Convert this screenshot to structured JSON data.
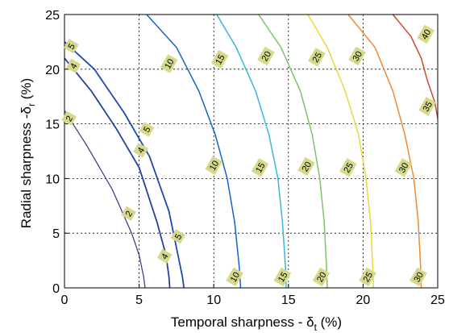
{
  "chart_data": {
    "type": "line",
    "title": "",
    "xlabel": {
      "main": "Temporal sharpness - δ",
      "sub": "t",
      "suffix": " (%)"
    },
    "ylabel": {
      "main": "Radial sharpness -δ",
      "sub": "r",
      "suffix": " (%)"
    },
    "xlim": [
      0,
      25
    ],
    "ylim": [
      0,
      25
    ],
    "xticks": [
      "0",
      "5",
      "10",
      "15",
      "20",
      "25"
    ],
    "yticks": [
      "0",
      "5",
      "10",
      "15",
      "20",
      "25"
    ],
    "grid": true,
    "series": [
      {
        "label": "2",
        "color": "#3a2f8a",
        "width": 1.2,
        "x": [
          0,
          1.5,
          3.2,
          4.5,
          5.0,
          5.3,
          5.4
        ],
        "y": [
          16.2,
          13,
          9,
          5,
          3,
          1,
          0
        ],
        "labels": [
          {
            "text": "2",
            "x": 0.3,
            "y": 15.5
          },
          {
            "text": "2",
            "x": 4.3,
            "y": 6.8
          }
        ]
      },
      {
        "label": "4",
        "color": "#243fa0",
        "width": 1.8,
        "x": [
          0,
          1.8,
          3.5,
          5.0,
          6.2,
          6.8,
          7.0,
          7.05
        ],
        "y": [
          21.0,
          18,
          14.5,
          11,
          6,
          3,
          1,
          0
        ],
        "labels": [
          {
            "text": "4",
            "x": 0.6,
            "y": 20.3
          },
          {
            "text": "4",
            "x": 5.1,
            "y": 12.6
          },
          {
            "text": "4",
            "x": 6.7,
            "y": 2.9
          }
        ]
      },
      {
        "label": "5",
        "color": "#1f48b5",
        "width": 1.8,
        "x": [
          0,
          2.0,
          4.0,
          5.7,
          7.0,
          7.6,
          7.9,
          8.0
        ],
        "y": [
          22.5,
          20,
          16,
          12,
          7,
          3,
          1,
          0
        ],
        "labels": [
          {
            "text": "5",
            "x": 0.45,
            "y": 22.1
          },
          {
            "text": "5",
            "x": 5.5,
            "y": 14.5
          },
          {
            "text": "5",
            "x": 7.6,
            "y": 4.7
          }
        ]
      },
      {
        "label": "10",
        "color": "#1862c2",
        "width": 1.5,
        "x": [
          5.5,
          7.5,
          9.0,
          10.1,
          10.9,
          11.4,
          11.7,
          11.8
        ],
        "y": [
          25,
          22,
          18,
          14,
          10,
          6,
          2,
          0
        ],
        "labels": [
          {
            "text": "10",
            "x": 7.0,
            "y": 20.5
          },
          {
            "text": "10",
            "x": 10.0,
            "y": 11.2
          },
          {
            "text": "10",
            "x": 11.4,
            "y": 1.0
          }
        ]
      },
      {
        "label": "15",
        "color": "#3ab6dd",
        "width": 1.5,
        "x": [
          10.2,
          11.5,
          12.8,
          13.7,
          14.3,
          14.6,
          14.8,
          14.85
        ],
        "y": [
          25,
          22,
          18,
          14,
          10,
          6,
          2,
          0
        ],
        "labels": [
          {
            "text": "15",
            "x": 10.4,
            "y": 20.9
          },
          {
            "text": "15",
            "x": 13.1,
            "y": 11.0
          },
          {
            "text": "15",
            "x": 14.6,
            "y": 1.0
          }
        ]
      },
      {
        "label": "20",
        "color": "#7cc36a",
        "width": 1.5,
        "x": [
          13.0,
          14.5,
          15.8,
          16.6,
          17.1,
          17.4,
          17.55,
          17.6
        ],
        "y": [
          25,
          22,
          18,
          14,
          10,
          6,
          2,
          0
        ],
        "labels": [
          {
            "text": "20",
            "x": 13.5,
            "y": 21.2
          },
          {
            "text": "20",
            "x": 16.2,
            "y": 11.1
          },
          {
            "text": "20",
            "x": 17.2,
            "y": 1.0
          }
        ]
      },
      {
        "label": "25",
        "color": "#e8d93a",
        "width": 1.5,
        "x": [
          16.3,
          17.6,
          18.8,
          19.7,
          20.2,
          20.5,
          20.65,
          20.7
        ],
        "y": [
          25,
          22,
          18,
          14,
          10,
          6,
          2,
          0
        ],
        "labels": [
          {
            "text": "25",
            "x": 16.9,
            "y": 21.1
          },
          {
            "text": "25",
            "x": 19.0,
            "y": 11.0
          },
          {
            "text": "25",
            "x": 20.3,
            "y": 1.0
          }
        ]
      },
      {
        "label": "30",
        "color": "#f08a32",
        "width": 1.5,
        "x": [
          19.0,
          20.8,
          22.0,
          22.8,
          23.4,
          23.7,
          23.85,
          23.9
        ],
        "y": [
          25,
          22,
          18,
          14,
          10,
          6,
          2,
          0
        ],
        "labels": [
          {
            "text": "30",
            "x": 19.6,
            "y": 21.2
          },
          {
            "text": "30",
            "x": 22.7,
            "y": 11.0
          },
          {
            "text": "30",
            "x": 23.7,
            "y": 1.0
          }
        ]
      },
      {
        "label": "35/40",
        "color": "#d2462a",
        "width": 1.5,
        "x": [
          22.0,
          23.2,
          23.9,
          24.3,
          24.8,
          25.0
        ],
        "y": [
          25,
          23,
          21,
          19,
          17,
          15.5
        ],
        "labels": [
          {
            "text": "40",
            "x": 24.2,
            "y": 23.2
          },
          {
            "text": "35",
            "x": 24.3,
            "y": 16.6
          }
        ]
      }
    ]
  }
}
